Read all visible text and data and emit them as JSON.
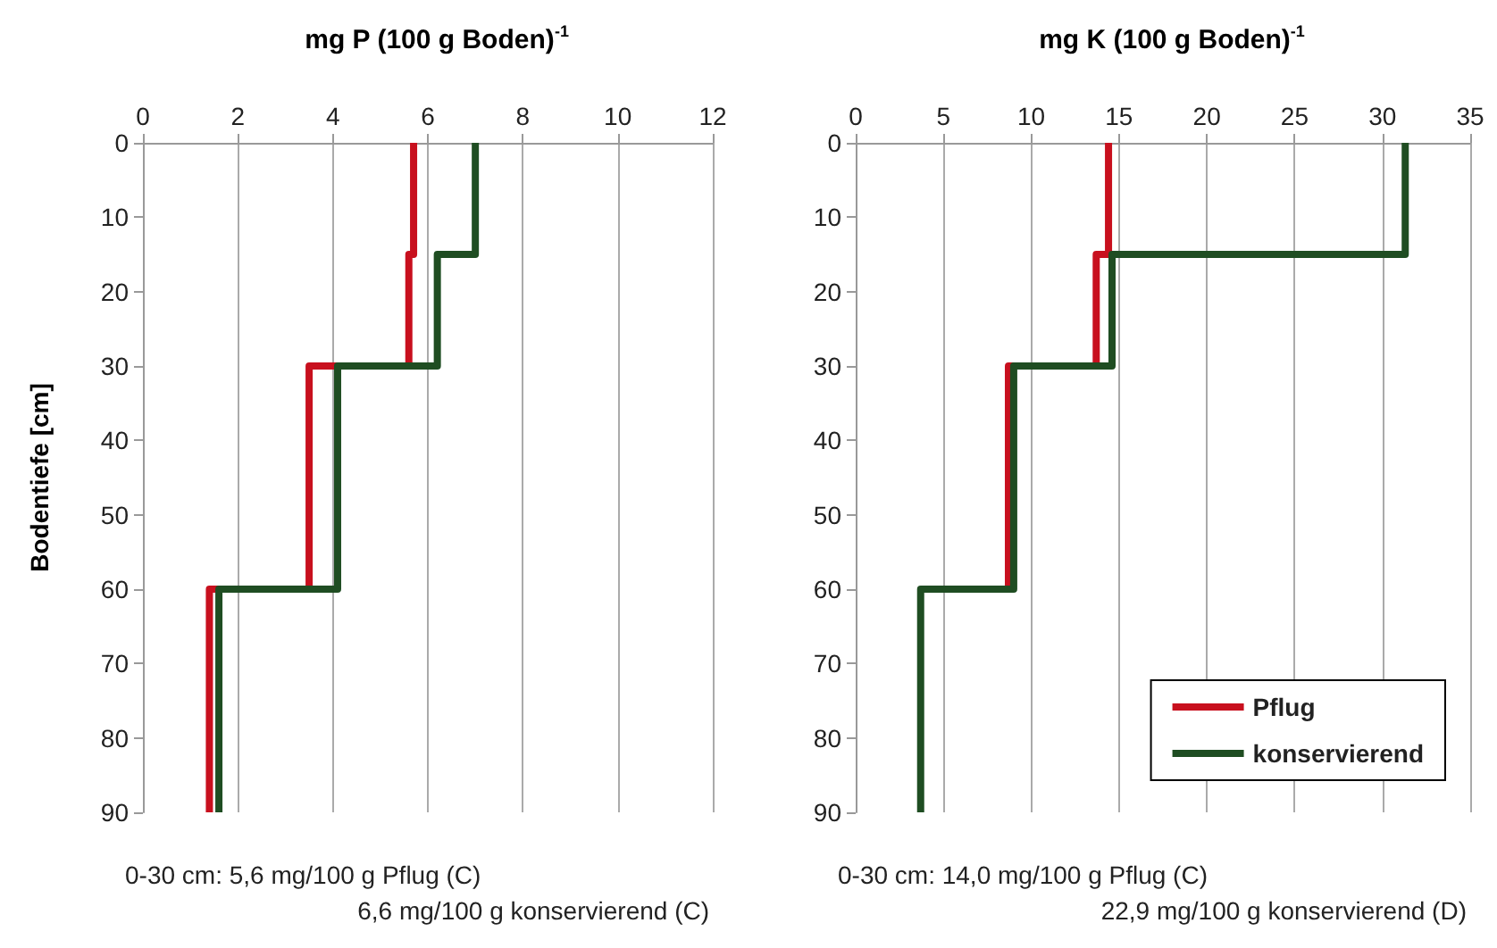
{
  "chart_data": [
    {
      "type": "line",
      "title": "mg P (100 g Boden)$^{-1}$",
      "ylabel": "Bodentiefe [cm]",
      "xlim": [
        0,
        12
      ],
      "xticks": [
        0,
        2,
        4,
        6,
        8,
        10,
        12
      ],
      "ylim": [
        90,
        0
      ],
      "yticks": [
        0,
        10,
        20,
        30,
        40,
        50,
        60,
        70,
        80,
        90
      ],
      "grid": "x",
      "legend": false,
      "marker": "none",
      "line_style": "solid",
      "series": [
        {
          "color": "#c8101e",
          "x": [
            5.7,
            5.7,
            5.6,
            5.6,
            3.5,
            3.5,
            1.4,
            1.4
          ],
          "values": [
            0,
            15,
            15,
            30,
            30,
            60,
            60,
            90
          ]
        },
        {
          "color": "#1f4d22",
          "x": [
            7.0,
            7.0,
            6.2,
            6.2,
            4.1,
            4.1,
            1.6,
            1.6
          ],
          "values": [
            0,
            15,
            15,
            30,
            30,
            60,
            60,
            90
          ]
        }
      ],
      "annotations": [
        "0-30 cm: 5,6 mg/100 g Pflug (C)",
        "6,6 mg/100 g konservierend (C)"
      ]
    },
    {
      "type": "line",
      "title": "mg K (100 g Boden)$^{-1}$",
      "xlim": [
        0,
        35
      ],
      "xticks": [
        0,
        5,
        10,
        15,
        20,
        25,
        30,
        35
      ],
      "ylim": [
        90,
        0
      ],
      "yticks": [
        0,
        10,
        20,
        30,
        40,
        50,
        60,
        70,
        80,
        90
      ],
      "grid": "x",
      "legend": "bottom right",
      "marker": "none",
      "line_style": "solid",
      "series": [
        {
          "name": "Pflug",
          "color": "#c8101e",
          "x": [
            14.4,
            14.4,
            13.7,
            13.7,
            8.7,
            8.7
          ],
          "values": [
            0,
            15,
            15,
            30,
            30,
            60
          ]
        },
        {
          "name": "konservierend",
          "color": "#1f4d22",
          "x": [
            31.3,
            31.3,
            14.6,
            14.6,
            9.0,
            9.0,
            3.7,
            3.7
          ],
          "values": [
            0,
            15,
            15,
            30,
            30,
            60,
            60,
            90
          ]
        }
      ],
      "annotations": [
        "0-30 cm: 14,0 mg/100 g Pflug (C)",
        "22,9 mg/100 g konservierend (D)"
      ]
    }
  ]
}
